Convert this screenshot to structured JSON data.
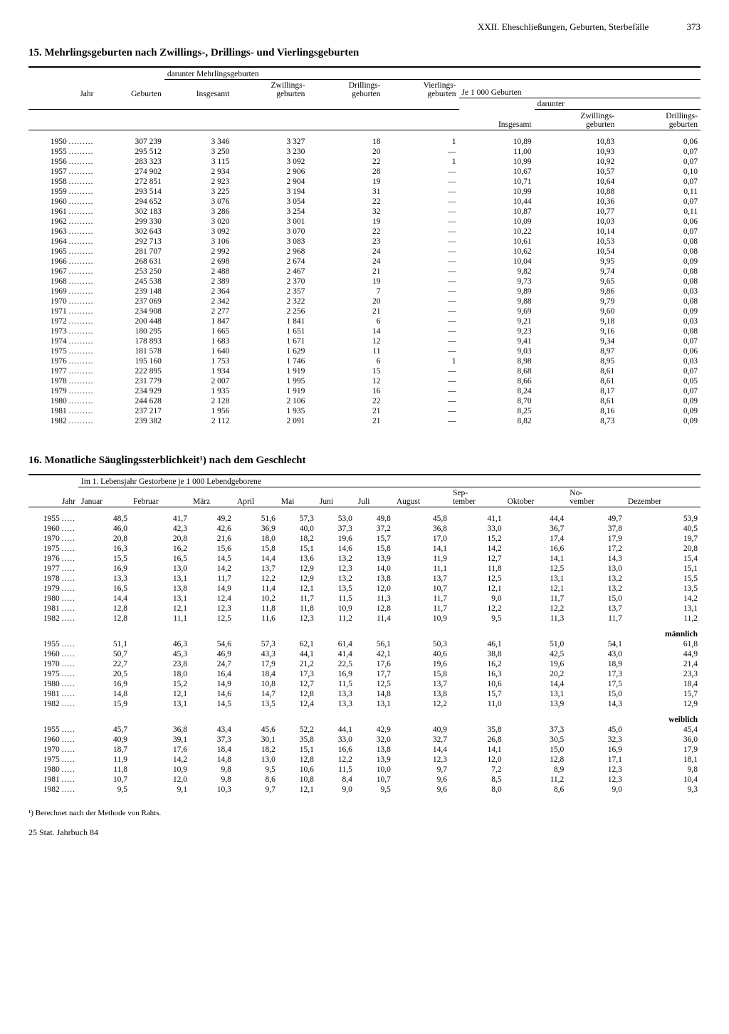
{
  "header": {
    "section": "XXII. Eheschließungen, Geburten, Sterbefälle",
    "page_number": "373"
  },
  "table15": {
    "title": "15. Mehrlingsgeburten nach Zwillings-, Drillings- und Vierlingsgeburten",
    "columns": {
      "jahr": "Jahr",
      "geburten": "Geburten",
      "darunter": "darunter Mehrlingsgeburten",
      "insgesamt": "Insgesamt",
      "zwillings": "Zwillings-\ngeburten",
      "drillings": "Drillings-\ngeburten",
      "vierlings": "Vierlings-\ngeburten",
      "je1000": "Je 1 000 Geburten",
      "je_insg": "Insgesamt",
      "je_darunter": "darunter",
      "je_zw": "Zwillings-\ngeburten",
      "je_dr": "Drillings-\ngeburten"
    },
    "rows": [
      {
        "y": "1950",
        "geb": "307 239",
        "ins": "3 346",
        "zw": "3 327",
        "dr": "18",
        "vi": "1",
        "j_ins": "10,89",
        "j_zw": "10,83",
        "j_dr": "0,06"
      },
      {
        "y": "1955",
        "geb": "295 512",
        "ins": "3 250",
        "zw": "3 230",
        "dr": "20",
        "vi": "—",
        "j_ins": "11,00",
        "j_zw": "10,93",
        "j_dr": "0,07"
      },
      {
        "y": "1956",
        "geb": "283 323",
        "ins": "3 115",
        "zw": "3 092",
        "dr": "22",
        "vi": "1",
        "j_ins": "10,99",
        "j_zw": "10,92",
        "j_dr": "0,07"
      },
      {
        "y": "1957",
        "geb": "274 902",
        "ins": "2 934",
        "zw": "2 906",
        "dr": "28",
        "vi": "—",
        "j_ins": "10,67",
        "j_zw": "10,57",
        "j_dr": "0,10"
      },
      {
        "y": "1958",
        "geb": "272 851",
        "ins": "2 923",
        "zw": "2 904",
        "dr": "19",
        "vi": "—",
        "j_ins": "10,71",
        "j_zw": "10,64",
        "j_dr": "0,07"
      },
      {
        "y": "1959",
        "geb": "293 514",
        "ins": "3 225",
        "zw": "3 194",
        "dr": "31",
        "vi": "—",
        "j_ins": "10,99",
        "j_zw": "10,88",
        "j_dr": "0,11"
      },
      {
        "y": "1960",
        "geb": "294 652",
        "ins": "3 076",
        "zw": "3 054",
        "dr": "22",
        "vi": "—",
        "j_ins": "10,44",
        "j_zw": "10,36",
        "j_dr": "0,07"
      },
      {
        "y": "1961",
        "geb": "302 183",
        "ins": "3 286",
        "zw": "3 254",
        "dr": "32",
        "vi": "—",
        "j_ins": "10,87",
        "j_zw": "10,77",
        "j_dr": "0,11"
      },
      {
        "y": "1962",
        "geb": "299 330",
        "ins": "3 020",
        "zw": "3 001",
        "dr": "19",
        "vi": "—",
        "j_ins": "10,09",
        "j_zw": "10,03",
        "j_dr": "0,06"
      },
      {
        "y": "1963",
        "geb": "302 643",
        "ins": "3 092",
        "zw": "3 070",
        "dr": "22",
        "vi": "—",
        "j_ins": "10,22",
        "j_zw": "10,14",
        "j_dr": "0,07"
      },
      {
        "y": "1964",
        "geb": "292 713",
        "ins": "3 106",
        "zw": "3 083",
        "dr": "23",
        "vi": "—",
        "j_ins": "10,61",
        "j_zw": "10,53",
        "j_dr": "0,08"
      },
      {
        "y": "1965",
        "geb": "281 707",
        "ins": "2 992",
        "zw": "2 968",
        "dr": "24",
        "vi": "—",
        "j_ins": "10,62",
        "j_zw": "10,54",
        "j_dr": "0,08"
      },
      {
        "y": "1966",
        "geb": "268 631",
        "ins": "2 698",
        "zw": "2 674",
        "dr": "24",
        "vi": "—",
        "j_ins": "10,04",
        "j_zw": "9,95",
        "j_dr": "0,09"
      },
      {
        "y": "1967",
        "geb": "253 250",
        "ins": "2 488",
        "zw": "2 467",
        "dr": "21",
        "vi": "—",
        "j_ins": "9,82",
        "j_zw": "9,74",
        "j_dr": "0,08"
      },
      {
        "y": "1968",
        "geb": "245 538",
        "ins": "2 389",
        "zw": "2 370",
        "dr": "19",
        "vi": "—",
        "j_ins": "9,73",
        "j_zw": "9,65",
        "j_dr": "0,08"
      },
      {
        "y": "1969",
        "geb": "239 148",
        "ins": "2 364",
        "zw": "2 357",
        "dr": "7",
        "vi": "—",
        "j_ins": "9,89",
        "j_zw": "9,86",
        "j_dr": "0,03"
      },
      {
        "y": "1970",
        "geb": "237 069",
        "ins": "2 342",
        "zw": "2 322",
        "dr": "20",
        "vi": "—",
        "j_ins": "9,88",
        "j_zw": "9,79",
        "j_dr": "0,08"
      },
      {
        "y": "1971",
        "geb": "234 908",
        "ins": "2 277",
        "zw": "2 256",
        "dr": "21",
        "vi": "—",
        "j_ins": "9,69",
        "j_zw": "9,60",
        "j_dr": "0,09"
      },
      {
        "y": "1972",
        "geb": "200 448",
        "ins": "1 847",
        "zw": "1 841",
        "dr": "6",
        "vi": "—",
        "j_ins": "9,21",
        "j_zw": "9,18",
        "j_dr": "0,03"
      },
      {
        "y": "1973",
        "geb": "180 295",
        "ins": "1 665",
        "zw": "1 651",
        "dr": "14",
        "vi": "—",
        "j_ins": "9,23",
        "j_zw": "9,16",
        "j_dr": "0,08"
      },
      {
        "y": "1974",
        "geb": "178 893",
        "ins": "1 683",
        "zw": "1 671",
        "dr": "12",
        "vi": "—",
        "j_ins": "9,41",
        "j_zw": "9,34",
        "j_dr": "0,07"
      },
      {
        "y": "1975",
        "geb": "181 578",
        "ins": "1 640",
        "zw": "1 629",
        "dr": "11",
        "vi": "—",
        "j_ins": "9,03",
        "j_zw": "8,97",
        "j_dr": "0,06"
      },
      {
        "y": "1976",
        "geb": "195 160",
        "ins": "1 753",
        "zw": "1 746",
        "dr": "6",
        "vi": "1",
        "j_ins": "8,98",
        "j_zw": "8,95",
        "j_dr": "0,03"
      },
      {
        "y": "1977",
        "geb": "222 895",
        "ins": "1 934",
        "zw": "1 919",
        "dr": "15",
        "vi": "—",
        "j_ins": "8,68",
        "j_zw": "8,61",
        "j_dr": "0,07"
      },
      {
        "y": "1978",
        "geb": "231 779",
        "ins": "2 007",
        "zw": "1 995",
        "dr": "12",
        "vi": "—",
        "j_ins": "8,66",
        "j_zw": "8,61",
        "j_dr": "0,05"
      },
      {
        "y": "1979",
        "geb": "234 929",
        "ins": "1 935",
        "zw": "1 919",
        "dr": "16",
        "vi": "—",
        "j_ins": "8,24",
        "j_zw": "8,17",
        "j_dr": "0,07"
      },
      {
        "y": "1980",
        "geb": "244 628",
        "ins": "2 128",
        "zw": "2 106",
        "dr": "22",
        "vi": "—",
        "j_ins": "8,70",
        "j_zw": "8,61",
        "j_dr": "0,09"
      },
      {
        "y": "1981",
        "geb": "237 217",
        "ins": "1 956",
        "zw": "1 935",
        "dr": "21",
        "vi": "—",
        "j_ins": "8,25",
        "j_zw": "8,16",
        "j_dr": "0,09"
      },
      {
        "y": "1982",
        "geb": "239 382",
        "ins": "2 112",
        "zw": "2 091",
        "dr": "21",
        "vi": "—",
        "j_ins": "8,82",
        "j_zw": "8,73",
        "j_dr": "0,09"
      }
    ]
  },
  "table16": {
    "title": "16. Monatliche Säuglingssterblichkeit¹) nach dem Geschlecht",
    "header_span": "Im 1. Lebensjahr Gestorbene je 1 000 Lebendgeborene",
    "months": [
      "Januar",
      "Februar",
      "März",
      "April",
      "Mai",
      "Juni",
      "Juli",
      "August",
      "Sep-\ntember",
      "Oktober",
      "No-\nvember",
      "Dezember"
    ],
    "col_jahr": "Jahr",
    "section_maennlich": "männlich",
    "section_weiblich": "weiblich",
    "groups": [
      {
        "label": "",
        "rows": [
          {
            "y": "1955",
            "v": [
              "48,5",
              "41,7",
              "49,2",
              "51,6",
              "57,3",
              "53,0",
              "49,8",
              "45,8",
              "41,1",
              "44,4",
              "49,7",
              "53,9"
            ]
          },
          {
            "y": "1960",
            "v": [
              "46,0",
              "42,3",
              "42,6",
              "36,9",
              "40,0",
              "37,3",
              "37,2",
              "36,8",
              "33,0",
              "36,7",
              "37,8",
              "40,5"
            ]
          },
          {
            "y": "1970",
            "v": [
              "20,8",
              "20,8",
              "21,6",
              "18,0",
              "18,2",
              "19,6",
              "15,7",
              "17,0",
              "15,2",
              "17,4",
              "17,9",
              "19,7"
            ]
          },
          {
            "y": "1975",
            "v": [
              "16,3",
              "16,2",
              "15,6",
              "15,8",
              "15,1",
              "14,6",
              "15,8",
              "14,1",
              "14,2",
              "16,6",
              "17,2",
              "20,8"
            ]
          },
          {
            "y": "1976",
            "v": [
              "15,5",
              "16,5",
              "14,5",
              "14,4",
              "13,6",
              "13,2",
              "13,9",
              "11,9",
              "12,7",
              "14,1",
              "14,3",
              "15,4"
            ]
          },
          {
            "y": "1977",
            "v": [
              "16,9",
              "13,0",
              "14,2",
              "13,7",
              "12,9",
              "12,3",
              "14,0",
              "11,1",
              "11,8",
              "12,5",
              "13,0",
              "15,1"
            ]
          },
          {
            "y": "1978",
            "v": [
              "13,3",
              "13,1",
              "11,7",
              "12,2",
              "12,9",
              "13,2",
              "13,8",
              "13,7",
              "12,5",
              "13,1",
              "13,2",
              "15,5"
            ]
          },
          {
            "y": "1979",
            "v": [
              "16,5",
              "13,8",
              "14,9",
              "11,4",
              "12,1",
              "13,5",
              "12,0",
              "10,7",
              "12,1",
              "12,1",
              "13,2",
              "13,5"
            ]
          },
          {
            "y": "1980",
            "v": [
              "14,4",
              "13,1",
              "12,4",
              "10,2",
              "11,7",
              "11,5",
              "11,3",
              "11,7",
              "9,0",
              "11,7",
              "15,0",
              "14,2"
            ]
          },
          {
            "y": "1981",
            "v": [
              "12,8",
              "12,1",
              "12,3",
              "11,8",
              "11,8",
              "10,9",
              "12,8",
              "11,7",
              "12,2",
              "12,2",
              "13,7",
              "13,1"
            ]
          },
          {
            "y": "1982",
            "v": [
              "12,8",
              "11,1",
              "12,5",
              "11,6",
              "12,3",
              "11,2",
              "11,4",
              "10,9",
              "9,5",
              "11,3",
              "11,7",
              "11,2"
            ]
          }
        ]
      },
      {
        "label": "männlich",
        "rows": [
          {
            "y": "1955",
            "v": [
              "51,1",
              "46,3",
              "54,6",
              "57,3",
              "62,1",
              "61,4",
              "56,1",
              "50,3",
              "46,1",
              "51,0",
              "54,1",
              "61,8"
            ]
          },
          {
            "y": "1960",
            "v": [
              "50,7",
              "45,3",
              "46,9",
              "43,3",
              "44,1",
              "41,4",
              "42,1",
              "40,6",
              "38,8",
              "42,5",
              "43,0",
              "44,9"
            ]
          },
          {
            "y": "1970",
            "v": [
              "22,7",
              "23,8",
              "24,7",
              "17,9",
              "21,2",
              "22,5",
              "17,6",
              "19,6",
              "16,2",
              "19,6",
              "18,9",
              "21,4"
            ]
          },
          {
            "y": "1975",
            "v": [
              "20,5",
              "18,0",
              "16,4",
              "18,4",
              "17,3",
              "16,9",
              "17,7",
              "15,8",
              "16,3",
              "20,2",
              "17,3",
              "23,3"
            ]
          },
          {
            "y": "1980",
            "v": [
              "16,9",
              "15,2",
              "14,9",
              "10,8",
              "12,7",
              "11,5",
              "12,5",
              "13,7",
              "10,6",
              "14,4",
              "17,5",
              "18,4"
            ]
          },
          {
            "y": "1981",
            "v": [
              "14,8",
              "12,1",
              "14,6",
              "14,7",
              "12,8",
              "13,3",
              "14,8",
              "13,8",
              "15,7",
              "13,1",
              "15,0",
              "15,7"
            ]
          },
          {
            "y": "1982",
            "v": [
              "15,9",
              "13,1",
              "14,5",
              "13,5",
              "12,4",
              "13,3",
              "13,1",
              "12,2",
              "11,0",
              "13,9",
              "14,3",
              "12,9"
            ]
          }
        ]
      },
      {
        "label": "weiblich",
        "rows": [
          {
            "y": "1955",
            "v": [
              "45,7",
              "36,8",
              "43,4",
              "45,6",
              "52,2",
              "44,1",
              "42,9",
              "40,9",
              "35,8",
              "37,3",
              "45,0",
              "45,4"
            ]
          },
          {
            "y": "1960",
            "v": [
              "40,9",
              "39,1",
              "37,3",
              "30,1",
              "35,8",
              "33,0",
              "32,0",
              "32,7",
              "26,8",
              "30,5",
              "32,3",
              "36,0"
            ]
          },
          {
            "y": "1970",
            "v": [
              "18,7",
              "17,6",
              "18,4",
              "18,2",
              "15,1",
              "16,6",
              "13,8",
              "14,4",
              "14,1",
              "15,0",
              "16,9",
              "17,9"
            ]
          },
          {
            "y": "1975",
            "v": [
              "11,9",
              "14,2",
              "14,8",
              "13,0",
              "12,8",
              "12,2",
              "13,9",
              "12,3",
              "12,0",
              "12,8",
              "17,1",
              "18,1"
            ]
          },
          {
            "y": "1980",
            "v": [
              "11,8",
              "10,9",
              "9,8",
              "9,5",
              "10,6",
              "11,5",
              "10,0",
              "9,7",
              "7,2",
              "8,9",
              "12,3",
              "9,8"
            ]
          },
          {
            "y": "1981",
            "v": [
              "10,7",
              "12,0",
              "9,8",
              "8,6",
              "10,8",
              "8,4",
              "10,7",
              "9,6",
              "8,5",
              "11,2",
              "12,3",
              "10,4"
            ]
          },
          {
            "y": "1982",
            "v": [
              "9,5",
              "9,1",
              "10,3",
              "9,7",
              "12,1",
              "9,0",
              "9,5",
              "9,6",
              "8,0",
              "8,6",
              "9,0",
              "9,3"
            ]
          }
        ]
      }
    ]
  },
  "footnote": "¹) Berechnet nach der Methode von Rahts.",
  "footer": "25   Stat. Jahrbuch 84"
}
